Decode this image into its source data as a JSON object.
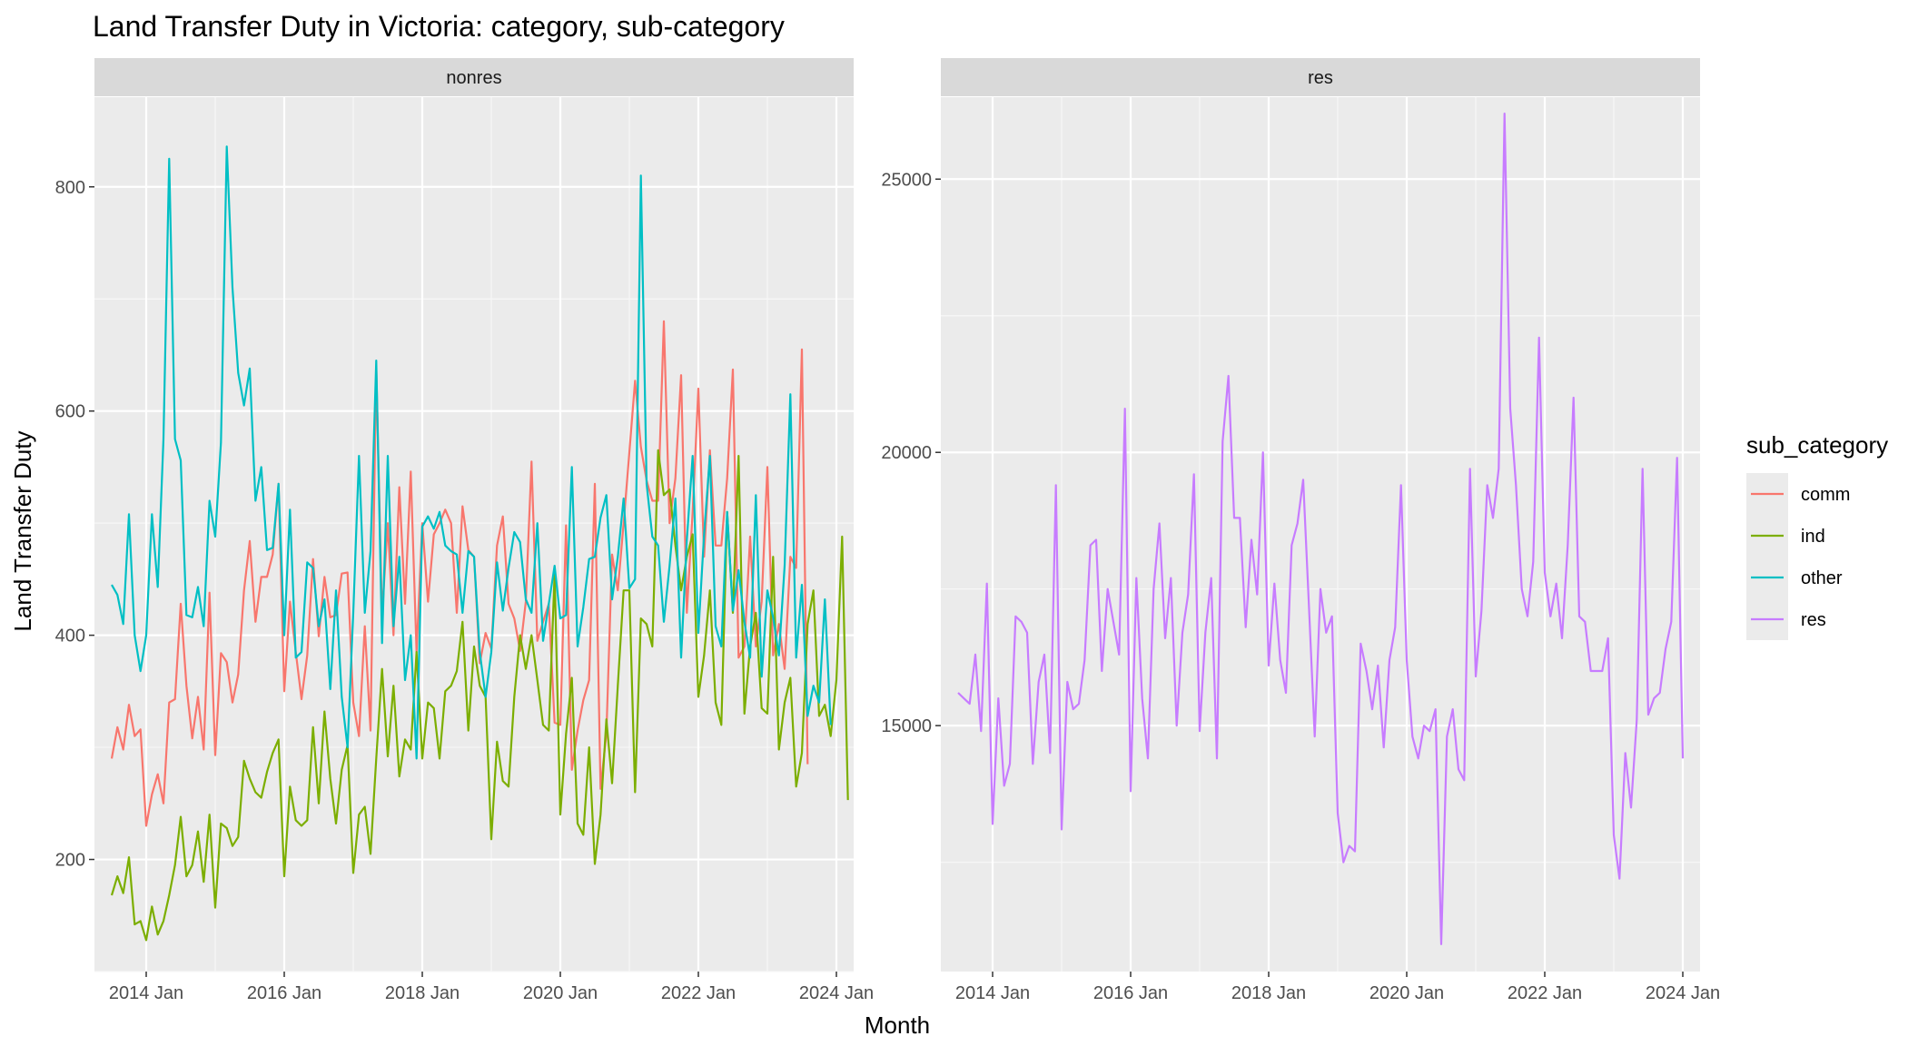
{
  "chart_data": {
    "type": "line",
    "title": "Land Transfer Duty in Victoria: category, sub-category",
    "xlabel": "Month",
    "ylabel": "Land Transfer Duty",
    "x_tick_labels": [
      "2014 Jan",
      "2016 Jan",
      "2018 Jan",
      "2020 Jan",
      "2022 Jan",
      "2024 Jan"
    ],
    "x_tick_dates": [
      "2014-01",
      "2016-01",
      "2018-01",
      "2020-01",
      "2022-01",
      "2024-01"
    ],
    "xlim": [
      "2013-04",
      "2024-04"
    ],
    "grid": true,
    "legend": {
      "title": "sub_category",
      "position": "right",
      "entries": [
        {
          "name": "comm",
          "color": "#F8766D"
        },
        {
          "name": "ind",
          "color": "#7CAE00"
        },
        {
          "name": "other",
          "color": "#00BFC4"
        },
        {
          "name": "res",
          "color": "#C77CFF"
        }
      ]
    },
    "background_color": "#EBEBEB",
    "strip_color": "#D9D9D9",
    "panels": [
      {
        "name": "nonres",
        "ylim": [
          100,
          880
        ],
        "y_ticks": [
          200,
          400,
          600,
          800
        ],
        "series": [
          {
            "name": "comm",
            "color": "#F8766D",
            "start": "2013-07",
            "values": [
              290,
              318,
              298,
              338,
              310,
              316,
              230,
              258,
              276,
              250,
              340,
              343,
              428,
              355,
              308,
              345,
              298,
              438,
              293,
              384,
              376,
              340,
              365,
              440,
              484,
              412,
              452,
              452,
              472,
              535,
              350,
              430,
              385,
              343,
              382,
              468,
              399,
              452,
              416,
              418,
              455,
              456,
              340,
              310,
              408,
              315,
              640,
              418,
              500,
              400,
              532,
              428,
              546,
              385,
              500,
              430,
              490,
              500,
              512,
              500,
              420,
              515,
              476,
              470,
              375,
              402,
              388,
              480,
              506,
              428,
              415,
              386,
              430,
              555,
              395,
              412,
              428,
              322,
              320,
              498,
              280,
              315,
              342,
              360,
              535,
              263,
              312,
              472,
              440,
              500,
              563,
              627,
              568,
              538,
              520,
              520,
              680,
              500,
              540,
              632,
              420,
              510,
              620,
              470,
              565,
              480,
              480,
              540,
              637,
              380,
              390,
              488,
              390,
              430,
              550,
              382,
              410,
              370,
              470,
              460,
              655,
              285
            ]
          },
          {
            "name": "ind",
            "color": "#7CAE00",
            "start": "2013-07",
            "values": [
              168,
              185,
              170,
              202,
              142,
              145,
              128,
              158,
              133,
              145,
              168,
              195,
              238,
              185,
              195,
              225,
              180,
              240,
              157,
              232,
              228,
              212,
              220,
              288,
              272,
              260,
              255,
              278,
              295,
              307,
              185,
              265,
              235,
              230,
              235,
              318,
              250,
              332,
              272,
              232,
              280,
              302,
              188,
              240,
              247,
              205,
              290,
              370,
              292,
              355,
              274,
              307,
              298,
              385,
              290,
              340,
              335,
              290,
              350,
              355,
              368,
              412,
              315,
              390,
              355,
              345,
              218,
              305,
              270,
              265,
              345,
              400,
              370,
              400,
              360,
              320,
              315,
              455,
              240,
              312,
              362,
              232,
              222,
              300,
              196,
              240,
              325,
              268,
              355,
              440,
              440,
              260,
              415,
              410,
              390,
              565,
              525,
              530,
              480,
              440,
              470,
              490,
              345,
              382,
              440,
              340,
              320,
              510,
              420,
              560,
              330,
              390,
              420,
              335,
              330,
              470,
              298,
              340,
              362,
              265,
              295,
              410,
              440,
              328,
              338,
              310,
              360,
              488,
              253
            ]
          },
          {
            "name": "other",
            "color": "#00BFC4",
            "start": "2013-07",
            "values": [
              445,
              436,
              410,
              508,
              400,
              368,
              400,
              508,
              443,
              575,
              825,
              575,
              556,
              418,
              416,
              443,
              408,
              520,
              488,
              572,
              836,
              710,
              634,
              605,
              638,
              520,
              550,
              476,
              478,
              535,
              400,
              512,
              380,
              385,
              465,
              460,
              408,
              432,
              352,
              440,
              345,
              300,
              420,
              560,
              420,
              475,
              645,
              393,
              560,
              408,
              470,
              360,
              400,
              290,
              497,
              506,
              495,
              510,
              480,
              475,
              472,
              420,
              475,
              470,
              385,
              345,
              385,
              465,
              422,
              460,
              492,
              483,
              432,
              420,
              500,
              395,
              428,
              462,
              415,
              418,
              550,
              390,
              425,
              468,
              470,
              505,
              525,
              432,
              470,
              522,
              442,
              450,
              810,
              535,
              488,
              480,
              412,
              462,
              522,
              380,
              485,
              560,
              402,
              490,
              560,
              408,
              390,
              510,
              422,
              458,
              412,
              380,
              525,
              363,
              440,
              416,
              382,
              462,
              615,
              380,
              445,
              328,
              355,
              340,
              432,
              320
            ]
          }
        ]
      },
      {
        "name": "res",
        "ylim": [
          10500,
          26500
        ],
        "y_ticks": [
          15000,
          20000,
          25000
        ],
        "series": [
          {
            "name": "res",
            "color": "#C77CFF",
            "start": "2013-07",
            "values": [
              15600,
              15500,
              15400,
              16300,
              14900,
              17600,
              13200,
              15500,
              13900,
              14300,
              17000,
              16900,
              16700,
              14300,
              15800,
              16300,
              14500,
              19400,
              13100,
              15800,
              15300,
              15400,
              16200,
              18300,
              18400,
              16000,
              17500,
              16900,
              16300,
              20800,
              13800,
              17700,
              15500,
              14400,
              17500,
              18700,
              16600,
              17700,
              15000,
              16700,
              17400,
              19600,
              14900,
              16700,
              17700,
              14400,
              20200,
              21400,
              18800,
              18800,
              16800,
              18400,
              17400,
              20000,
              16100,
              17600,
              16200,
              15600,
              18300,
              18700,
              19500,
              17200,
              14800,
              17500,
              16700,
              17000,
              13400,
              12500,
              12800,
              12700,
              16500,
              16000,
              15300,
              16100,
              14600,
              16200,
              16800,
              19400,
              16200,
              14800,
              14400,
              15000,
              14900,
              15300,
              11000,
              14800,
              15300,
              14200,
              14000,
              19700,
              15900,
              17100,
              19400,
              18800,
              19700,
              26200,
              20800,
              19400,
              17500,
              17000,
              18000,
              22100,
              17800,
              17000,
              17600,
              16600,
              18300,
              21000,
              17000,
              16900,
              16000,
              16000,
              16000,
              16600,
              13000,
              12200,
              14500,
              13500,
              15100,
              19700,
              15200,
              15500,
              15600,
              16400,
              16900,
              19900,
              14400
            ]
          }
        ]
      }
    ]
  }
}
